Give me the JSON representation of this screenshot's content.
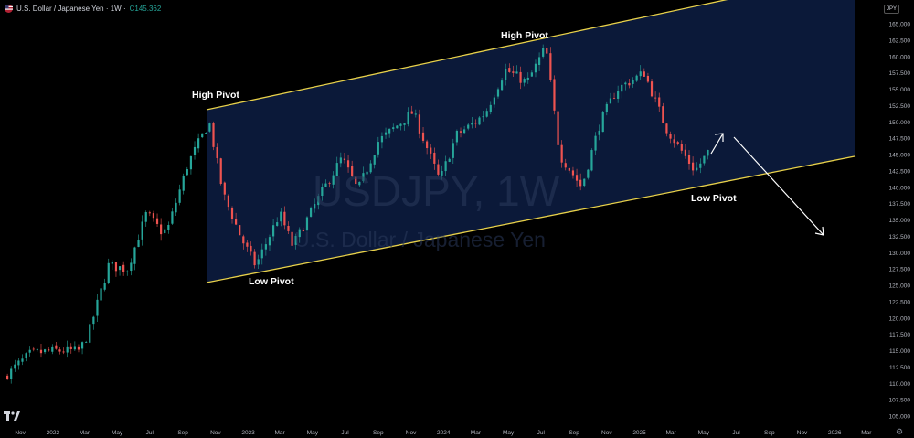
{
  "header": {
    "symbol": "U.S. Dollar / Japanese Yen · 1W ·",
    "close_prefix": "C",
    "close_value": "145.362"
  },
  "currency_badge": "JPY",
  "watermark": {
    "ticker": "USDJPY, 1W",
    "name": "U.S. Dollar / Japanese Yen"
  },
  "annotations": {
    "high_pivot_1": "High Pivot",
    "high_pivot_2": "High Pivot",
    "low_pivot_1": "Low Pivot",
    "low_pivot_2": "Low Pivot"
  },
  "colors": {
    "up": "#26a69a",
    "down": "#ef5350",
    "channel_line": "#e8d14a",
    "channel_fill": "#0c1a3c",
    "arrow": "#ffffff"
  },
  "chart_data": {
    "type": "candlestick",
    "title": "USDJPY, 1W",
    "ylim": [
      104,
      166
    ],
    "y_ticks": [
      "105.000",
      "107.500",
      "110.000",
      "112.500",
      "115.000",
      "117.500",
      "120.000",
      "122.500",
      "125.000",
      "127.500",
      "130.000",
      "132.500",
      "135.000",
      "137.500",
      "140.000",
      "142.500",
      "145.000",
      "147.500",
      "150.000",
      "152.500",
      "155.000",
      "157.500",
      "160.000",
      "162.500",
      "165.000"
    ],
    "x_ticks": [
      "Nov",
      "2022",
      "Mar",
      "May",
      "Jul",
      "Sep",
      "Nov",
      "2023",
      "Mar",
      "May",
      "Jul",
      "Sep",
      "Nov",
      "2024",
      "Mar",
      "May",
      "Jul",
      "Sep",
      "Nov",
      "2025",
      "Mar",
      "May",
      "Jul",
      "Sep",
      "Nov",
      "2026",
      "Mar"
    ],
    "x_range": [
      "2021-10-01",
      "2026-03-15"
    ],
    "price_path": [
      {
        "date": "2021-10-01",
        "close": 111.0
      },
      {
        "date": "2021-11-20",
        "close": 114.5
      },
      {
        "date": "2022-01-01",
        "close": 115.0
      },
      {
        "date": "2022-02-20",
        "close": 115.0
      },
      {
        "date": "2022-03-10",
        "close": 118.0
      },
      {
        "date": "2022-04-15",
        "close": 128.0
      },
      {
        "date": "2022-05-20",
        "close": 127.5
      },
      {
        "date": "2022-06-25",
        "close": 136.0
      },
      {
        "date": "2022-07-25",
        "close": 133.0
      },
      {
        "date": "2022-08-05",
        "close": 134.0
      },
      {
        "date": "2022-09-10",
        "close": 143.5
      },
      {
        "date": "2022-10-20",
        "close": 150.0
      },
      {
        "date": "2022-11-15",
        "close": 139.0
      },
      {
        "date": "2022-12-20",
        "close": 132.0
      },
      {
        "date": "2023-01-15",
        "close": 128.0
      },
      {
        "date": "2023-03-01",
        "close": 136.0
      },
      {
        "date": "2023-03-25",
        "close": 131.0
      },
      {
        "date": "2023-05-10",
        "close": 138.0
      },
      {
        "date": "2023-06-25",
        "close": 144.5
      },
      {
        "date": "2023-07-25",
        "close": 139.5
      },
      {
        "date": "2023-09-01",
        "close": 147.0
      },
      {
        "date": "2023-11-05",
        "close": 151.5
      },
      {
        "date": "2023-12-25",
        "close": 141.0
      },
      {
        "date": "2024-01-25",
        "close": 148.0
      },
      {
        "date": "2024-03-01",
        "close": 150.0
      },
      {
        "date": "2024-03-20",
        "close": 151.5
      },
      {
        "date": "2024-04-25",
        "close": 158.0
      },
      {
        "date": "2024-06-05",
        "close": 156.0
      },
      {
        "date": "2024-07-10",
        "close": 161.5
      },
      {
        "date": "2024-08-05",
        "close": 145.0
      },
      {
        "date": "2024-09-15",
        "close": 140.0
      },
      {
        "date": "2024-10-20",
        "close": 150.0
      },
      {
        "date": "2024-11-20",
        "close": 155.0
      },
      {
        "date": "2025-01-10",
        "close": 157.5
      },
      {
        "date": "2025-02-20",
        "close": 149.0
      },
      {
        "date": "2025-04-15",
        "close": 142.5
      },
      {
        "date": "2025-05-10",
        "close": 145.4
      }
    ]
  }
}
